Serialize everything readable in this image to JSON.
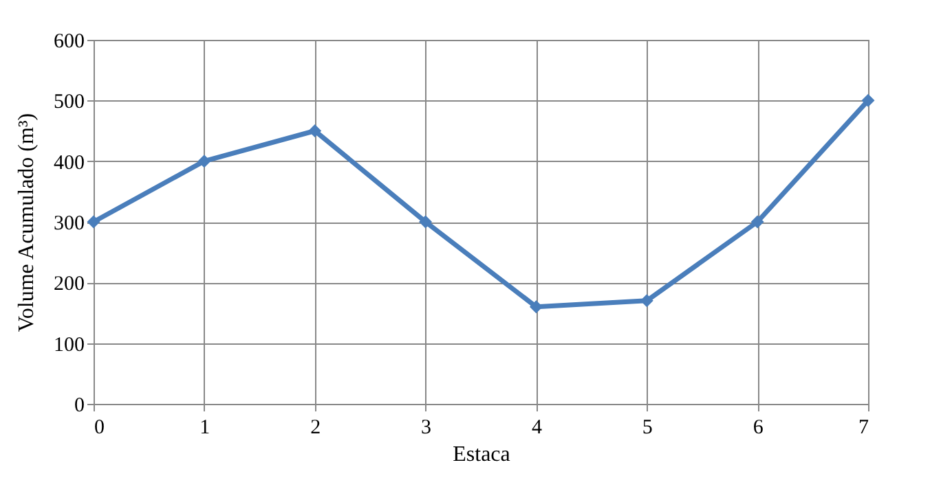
{
  "chart_data": {
    "type": "line",
    "xlabel": "Estaca",
    "ylabel": "Volume Acumulado (m³)",
    "x": [
      0,
      1,
      2,
      3,
      4,
      5,
      6,
      7
    ],
    "series": [
      {
        "color": "#4a7ebb",
        "values": [
          300,
          400,
          450,
          300,
          160,
          170,
          300,
          500
        ]
      }
    ],
    "xlim": [
      0,
      7
    ],
    "xticks": [
      0,
      1,
      2,
      3,
      4,
      5,
      6,
      7
    ],
    "ylim": [
      0,
      600
    ],
    "yticks": [
      0,
      100,
      200,
      300,
      400,
      500,
      600
    ],
    "grid": true,
    "marker": "diamond",
    "line_style": "solid",
    "legend": false
  }
}
